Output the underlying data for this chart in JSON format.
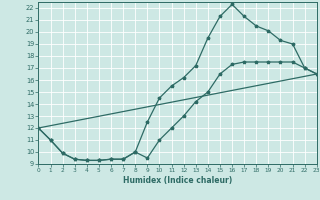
{
  "xlabel": "Humidex (Indice chaleur)",
  "xlim": [
    0,
    23
  ],
  "ylim": [
    9,
    22.5
  ],
  "xticks": [
    0,
    1,
    2,
    3,
    4,
    5,
    6,
    7,
    8,
    9,
    10,
    11,
    12,
    13,
    14,
    15,
    16,
    17,
    18,
    19,
    20,
    21,
    22,
    23
  ],
  "yticks": [
    9,
    10,
    11,
    12,
    13,
    14,
    15,
    16,
    17,
    18,
    19,
    20,
    21,
    22
  ],
  "background_color": "#cde8e4",
  "grid_color": "#ffffff",
  "line_color": "#2e6b65",
  "line1_x": [
    0,
    1,
    2,
    3,
    4,
    5,
    6,
    7,
    8,
    9,
    10,
    11,
    12,
    13,
    14,
    15,
    16,
    17,
    18,
    19,
    20,
    21,
    22,
    23
  ],
  "line1_y": [
    12,
    11,
    9.9,
    9.4,
    9.3,
    9.3,
    9.4,
    9.4,
    10.0,
    12.5,
    14.5,
    15.5,
    16.2,
    17.2,
    19.5,
    21.3,
    22.3,
    21.3,
    20.5,
    20.1,
    19.3,
    19.0,
    17.0,
    16.5
  ],
  "line2_x": [
    0,
    1,
    2,
    3,
    4,
    5,
    6,
    7,
    8,
    9,
    10,
    11,
    12,
    13,
    14,
    15,
    16,
    17,
    18,
    19,
    20,
    21,
    22,
    23
  ],
  "line2_y": [
    12,
    11,
    9.9,
    9.4,
    9.3,
    9.3,
    9.4,
    9.4,
    10.0,
    9.5,
    11.0,
    12.0,
    13.0,
    14.2,
    15.0,
    16.5,
    17.3,
    17.5,
    17.5,
    17.5,
    17.5,
    17.5,
    17.0,
    16.5
  ],
  "line3_x": [
    0,
    23
  ],
  "line3_y": [
    12,
    16.5
  ]
}
